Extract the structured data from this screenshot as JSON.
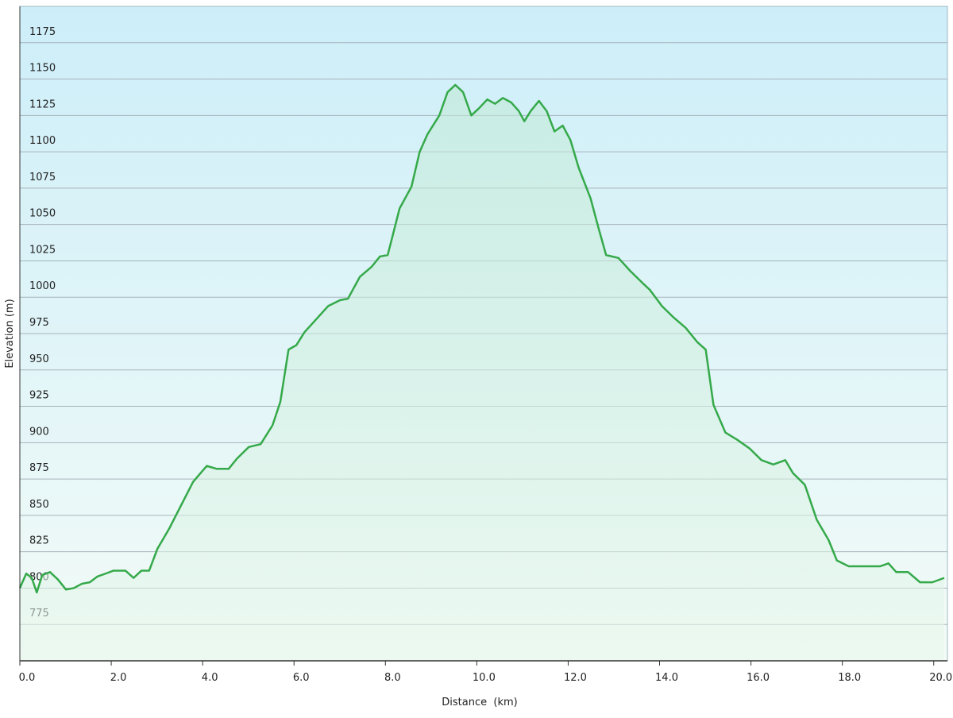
{
  "chart_data": {
    "type": "line",
    "x_label": "Distance  (km)",
    "y_label": "Elevation (m)",
    "series_color": "#35a94a",
    "grid": true,
    "xlim": [
      0,
      20.3
    ],
    "ylim": [
      750,
      1200
    ],
    "xticks": [
      {
        "value": 0,
        "label": "0.0"
      },
      {
        "value": 2,
        "label": "2.0"
      },
      {
        "value": 4,
        "label": "4.0"
      },
      {
        "value": 6,
        "label": "6.0"
      },
      {
        "value": 8,
        "label": "8.0"
      },
      {
        "value": 10,
        "label": "10.0"
      },
      {
        "value": 12,
        "label": "12.0"
      },
      {
        "value": 14,
        "label": "14.0"
      },
      {
        "value": 16,
        "label": "16.0"
      },
      {
        "value": 18,
        "label": "18.0"
      },
      {
        "value": 20,
        "label": "20.0"
      }
    ],
    "yticks": [
      775,
      800,
      825,
      850,
      875,
      900,
      925,
      950,
      975,
      1000,
      1025,
      1050,
      1075,
      1100,
      1125,
      1150,
      1175
    ],
    "x": [
      0.0,
      0.14,
      0.26,
      0.37,
      0.49,
      0.66,
      0.83,
      1.01,
      1.18,
      1.36,
      1.53,
      1.7,
      1.88,
      2.05,
      2.31,
      2.49,
      2.66,
      2.83,
      3.01,
      3.27,
      3.53,
      3.79,
      4.09,
      4.31,
      4.57,
      4.75,
      5.01,
      5.27,
      5.53,
      5.7,
      5.88,
      6.05,
      6.23,
      6.49,
      6.75,
      7.01,
      7.18,
      7.44,
      7.7,
      7.88,
      8.05,
      8.14,
      8.31,
      8.57,
      8.75,
      8.92,
      9.18,
      9.36,
      9.53,
      9.7,
      9.88,
      10.05,
      10.23,
      10.4,
      10.57,
      10.75,
      10.92,
      11.04,
      11.18,
      11.36,
      11.53,
      11.7,
      11.88,
      12.05,
      12.23,
      12.49,
      12.66,
      12.83,
      13.1,
      13.36,
      13.62,
      13.79,
      14.05,
      14.31,
      14.57,
      14.83,
      15.01,
      15.18,
      15.44,
      15.7,
      15.97,
      16.23,
      16.49,
      16.75,
      16.92,
      17.18,
      17.44,
      17.7,
      17.88,
      18.14,
      18.4,
      18.66,
      18.83,
      19.01,
      19.18,
      19.44,
      19.7,
      19.97,
      20.23
    ],
    "y": [
      800,
      810,
      807,
      797,
      809,
      811,
      806,
      799,
      800,
      803,
      804,
      808,
      810,
      812,
      812,
      807,
      812,
      812,
      827,
      841,
      857,
      873,
      884,
      882,
      882,
      889,
      897,
      899,
      912,
      928,
      964,
      967,
      976,
      985,
      994,
      998,
      999,
      1014,
      1021,
      1028,
      1029,
      1040,
      1061,
      1076,
      1100,
      1112,
      1125,
      1141,
      1146,
      1141,
      1125,
      1130,
      1136,
      1133,
      1137,
      1134,
      1128,
      1121,
      1128,
      1135,
      1128,
      1114,
      1118,
      1108,
      1089,
      1068,
      1048,
      1029,
      1027,
      1018,
      1010,
      1005,
      994,
      986,
      979,
      969,
      964,
      926,
      907,
      902,
      896,
      888,
      885,
      888,
      879,
      871,
      847,
      833,
      819,
      815,
      815,
      815,
      815,
      817,
      811,
      811,
      804,
      804,
      807
    ]
  }
}
